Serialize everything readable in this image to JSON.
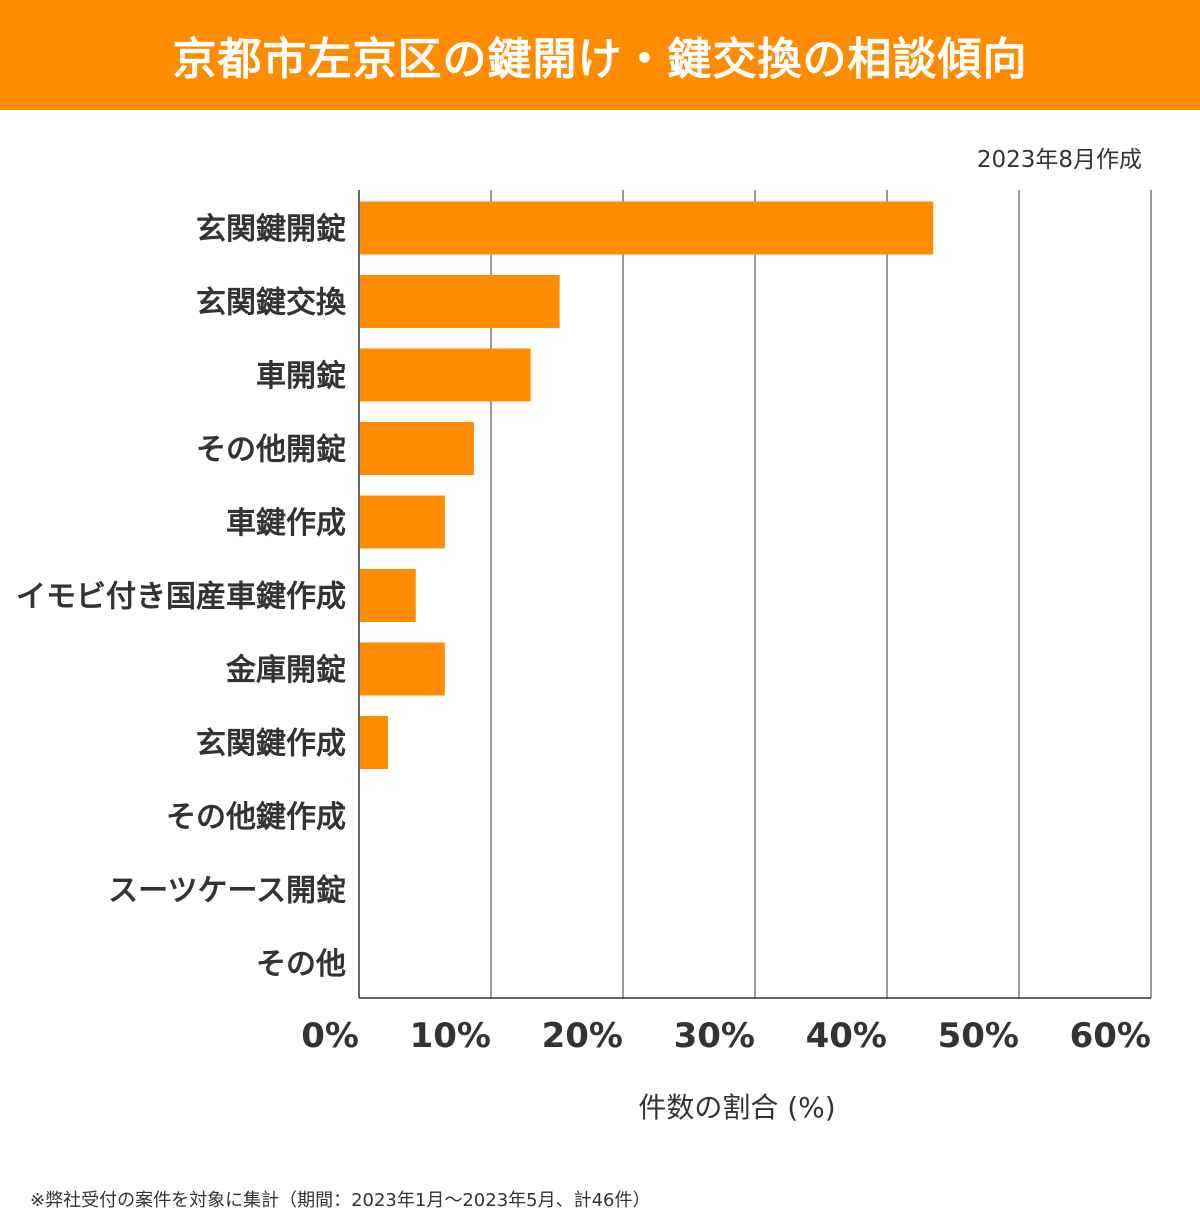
{
  "header": {
    "title": "京都市左京区の鍵開け・鍵交換の相談傾向"
  },
  "date_note": "2023年8月作成",
  "footnote": "※弊社受付の案件を対象に集計（期間：2023年1月～2023年5月、計46件）",
  "colors": {
    "accent": "#FF8C00",
    "bar": "#FF8C00",
    "grid": "#333333",
    "text": "#333333"
  },
  "chart_data": {
    "type": "bar",
    "orientation": "horizontal",
    "title": "京都市左京区の鍵開け・鍵交換の相談傾向",
    "xlabel": "件数の割合 (%)",
    "ylabel": "",
    "xlim": [
      0,
      60
    ],
    "x_ticks": [
      0,
      10,
      20,
      30,
      40,
      50,
      60
    ],
    "x_tick_labels": [
      "0%",
      "10%",
      "20%",
      "30%",
      "40%",
      "50%",
      "60%"
    ],
    "grid": "vertical",
    "categories": [
      "玄関鍵開錠",
      "玄関鍵交換",
      "車開錠",
      "その他開錠",
      "車鍵作成",
      "イモビ付き国産車鍵作成",
      "金庫開錠",
      "玄関鍵作成",
      "その他鍵作成",
      "スーツケース開錠",
      "その他"
    ],
    "values": [
      43.5,
      15.2,
      13.0,
      8.7,
      6.5,
      4.3,
      6.5,
      2.2,
      0,
      0,
      0
    ]
  }
}
